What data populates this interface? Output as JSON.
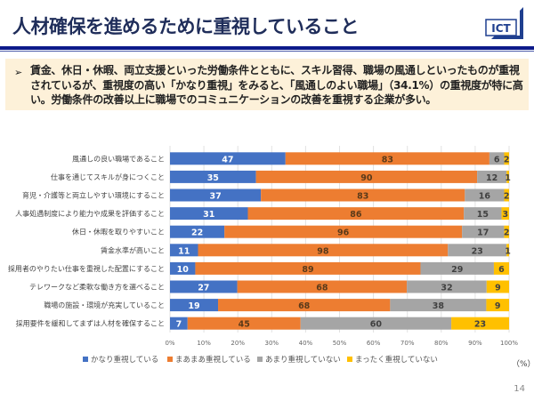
{
  "header": {
    "title": "人材確保を進めるために重視していること",
    "logo_text": "ICT"
  },
  "summary": {
    "bullet": "➢",
    "text": "賃金、休日・休暇、両立支援といった労働条件とともに、スキル習得、職場の風通しといったものが重視されているが、重視度の高い「かなり重視」をみると、「風通しのよい職場」（34.1%）の重視度が特に高い。労働条件の改善以上に職場でのコミュニケーションの改善を重視する企業が多い。"
  },
  "colors": {
    "title": "#1f2d5a",
    "rule": "#0d1a8a",
    "summary_bg": "#fdf1d9"
  },
  "chart_data": {
    "type": "bar",
    "orientation": "horizontal",
    "stacked": "percent",
    "title": "",
    "xlabel": "",
    "ylabel": "",
    "unit_label": "（%）",
    "xlim": [
      0,
      100
    ],
    "x_ticks": [
      "0%",
      "10%",
      "20%",
      "30%",
      "40%",
      "50%",
      "60%",
      "70%",
      "80%",
      "90%",
      "100%"
    ],
    "grid": true,
    "legend_position": "bottom",
    "categories": [
      "風通しの良い職場であること",
      "仕事を通じてスキルが身につくこと",
      "育児・介護等と両立しやすい環境にすること",
      "人事処遇制度により能力や成果を評価すること",
      "休日・休暇を取りやすいこと",
      "賃金水準が高いこと",
      "採用者のやりたい仕事を重視した配置にすること",
      "テレワークなど柔軟な働き方を選べること",
      "職場の施設・環境が充実していること",
      "採用要件を緩和してまずは人材を確保すること"
    ],
    "series": [
      {
        "name": "かなり重視している",
        "color": "#4472c4",
        "label_color": "#ffffff",
        "values": [
          47,
          35,
          37,
          31,
          22,
          11,
          10,
          27,
          19,
          7
        ]
      },
      {
        "name": "まあまあ重視している",
        "color": "#ed7d31",
        "label_color": "#5a3a1a",
        "values": [
          83,
          90,
          83,
          86,
          96,
          98,
          89,
          68,
          68,
          45
        ]
      },
      {
        "name": "あまり重視していない",
        "color": "#a5a5a5",
        "label_color": "#404040",
        "values": [
          6,
          12,
          16,
          15,
          17,
          23,
          29,
          32,
          38,
          60
        ]
      },
      {
        "name": "まったく重視していない",
        "color": "#ffc000",
        "label_color": "#404040",
        "values": [
          2,
          1,
          2,
          3,
          2,
          1,
          6,
          9,
          9,
          23
        ]
      }
    ]
  },
  "footer": {
    "page_number": "14"
  }
}
